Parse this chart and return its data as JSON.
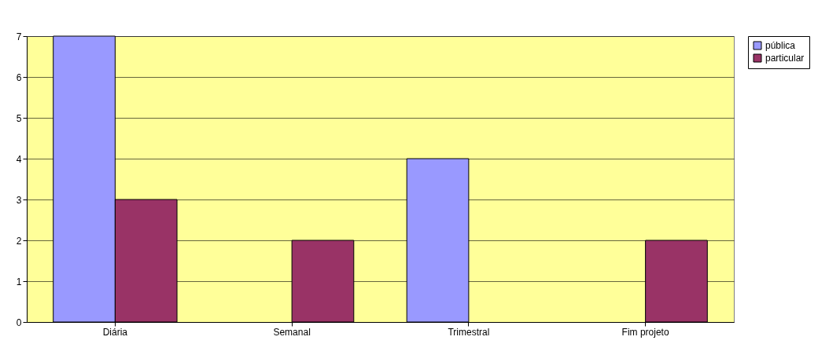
{
  "chart_data": {
    "type": "bar",
    "categories": [
      "Diária",
      "Semanal",
      "Trimestral",
      "Fim projeto"
    ],
    "series": [
      {
        "name": "pública",
        "color": "#9999ff",
        "values": [
          7,
          0,
          4,
          0
        ]
      },
      {
        "name": "particular",
        "color": "#993366",
        "values": [
          3,
          2,
          0,
          2
        ]
      }
    ],
    "ylim": [
      0,
      7
    ],
    "yticks": [
      0,
      1,
      2,
      3,
      4,
      5,
      6,
      7
    ],
    "grid": "y",
    "legend": "right"
  }
}
